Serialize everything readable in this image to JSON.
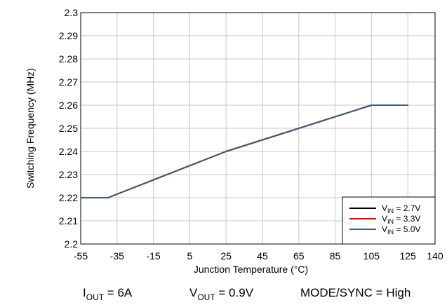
{
  "chart_data": {
    "type": "line",
    "title": "",
    "xlabel": "Junction Temperature (°C)",
    "ylabel": "Switching Frequency (MHz)",
    "xlim": [
      -55,
      140
    ],
    "ylim": [
      2.2,
      2.3
    ],
    "x_ticks": [
      "-55",
      "-35",
      "-15",
      "5",
      "25",
      "45",
      "65",
      "85",
      "105",
      "125",
      "140"
    ],
    "y_ticks": [
      "2.2",
      "2.21",
      "2.22",
      "2.23",
      "2.24",
      "2.25",
      "2.26",
      "2.27",
      "2.28",
      "2.29",
      "2.3"
    ],
    "grid": true,
    "legend_position": "bottom-right",
    "x": [
      -55,
      -40,
      25,
      105,
      125
    ],
    "series": [
      {
        "name_main": "V",
        "name_sub": "IN",
        "name_rest": " = 2.7V",
        "color": "#000000",
        "values": [
          2.22,
          2.22,
          2.24,
          2.26,
          2.26
        ]
      },
      {
        "name_main": "V",
        "name_sub": "IN",
        "name_rest": " = 3.3V",
        "color": "#e00000",
        "values": [
          2.22,
          2.22,
          2.24,
          2.26,
          2.26
        ]
      },
      {
        "name_main": "V",
        "name_sub": "IN",
        "name_rest": " = 5.0V",
        "color": "#3a5f78",
        "values": [
          2.22,
          2.22,
          2.24,
          2.26,
          2.26
        ]
      }
    ]
  },
  "conditions": [
    {
      "main": "I",
      "sub": "OUT",
      "rest": " = 6A"
    },
    {
      "main": "V",
      "sub": "OUT",
      "rest": " = 0.9V"
    },
    {
      "main": "MODE/SYNC = High",
      "sub": "",
      "rest": ""
    }
  ]
}
